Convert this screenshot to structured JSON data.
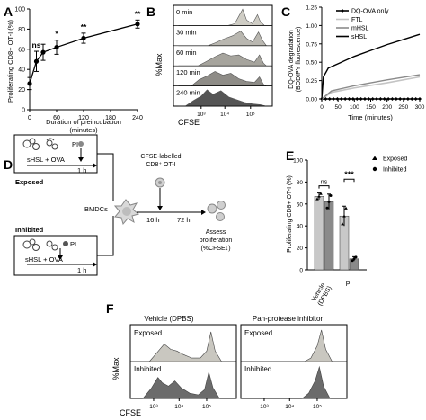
{
  "panel_letters": {
    "A": "A",
    "B": "B",
    "C": "C",
    "D": "D",
    "E": "E",
    "F": "F"
  },
  "colors": {
    "exposed": "#c9c7c0",
    "inhibited": "#6b6b6b",
    "vehicle_bar": "#c8c8c8",
    "pi_bar": "#7a7a7a",
    "line": "#000000"
  },
  "chart_data": [
    {
      "panel": "A",
      "type": "line",
      "title": "",
      "xlabel": "Duration of preincubation\n(minutes)",
      "ylabel": "Proliferating CD8+ OT-I (%)",
      "xlim": [
        0,
        240
      ],
      "ylim": [
        0,
        100
      ],
      "xticks": [
        "0",
        "60",
        "120",
        "180",
        "240"
      ],
      "yticks": [
        "0",
        "20",
        "40",
        "60",
        "80",
        "100"
      ],
      "x": [
        0,
        15,
        30,
        60,
        120,
        240
      ],
      "y": [
        26,
        48,
        57,
        62,
        71,
        85
      ],
      "err": [
        6,
        10,
        8,
        7,
        5,
        4
      ],
      "significance": [
        "",
        "ns",
        "*",
        "**",
        "**"
      ],
      "sig_x": [
        15,
        60,
        120,
        240
      ]
    },
    {
      "panel": "B",
      "type": "area",
      "xlabel": "CFSE",
      "ylabel": "%Max",
      "rows": [
        "0 min",
        "30 min",
        "60 min",
        "120 min",
        "240 min"
      ],
      "xticks": [
        "10³",
        "10⁴",
        "10⁵"
      ],
      "fill_colors": [
        "#cfcdc5",
        "#b9b7b0",
        "#a6a49d",
        "#8e8c87",
        "#555555"
      ]
    },
    {
      "panel": "C",
      "type": "line",
      "xlabel": "Time (minutes)",
      "ylabel": "DQ-OVA degradation\n(BODIPY fluorescence)",
      "xlim": [
        0,
        300
      ],
      "ylim": [
        0,
        1.25
      ],
      "xticks": [
        "0",
        "50",
        "100",
        "150",
        "200",
        "250",
        "300"
      ],
      "yticks": [
        "0.00",
        "0.25",
        "0.50",
        "0.75",
        "1.00",
        "1.25"
      ],
      "grid": false,
      "legend": "top-right",
      "series": [
        {
          "name": "DQ-OVA only",
          "x": [
            0,
            300
          ],
          "y": [
            0.0,
            0.0
          ]
        },
        {
          "name": "FTL",
          "x": [
            0,
            30,
            100,
            200,
            300
          ],
          "y": [
            0.0,
            0.09,
            0.15,
            0.22,
            0.3
          ]
        },
        {
          "name": "mHSL",
          "x": [
            0,
            30,
            100,
            200,
            300
          ],
          "y": [
            0.0,
            0.11,
            0.18,
            0.26,
            0.33
          ]
        },
        {
          "name": "sHSL",
          "x": [
            0,
            5,
            20,
            50,
            100,
            150,
            200,
            250,
            300
          ],
          "y": [
            0.0,
            0.3,
            0.42,
            0.48,
            0.58,
            0.66,
            0.74,
            0.81,
            0.88
          ]
        }
      ]
    },
    {
      "panel": "E",
      "type": "bar",
      "ylabel": "Proliferating CD8+ OT-I (%)",
      "categories": [
        "Vehicle\n(DPBS)",
        "PI"
      ],
      "ylim": [
        0,
        100
      ],
      "yticks": [
        "0",
        "20",
        "40",
        "60",
        "80",
        "100"
      ],
      "legend": "top-right",
      "series": [
        {
          "name": "Exposed",
          "values": [
            67,
            49
          ],
          "err": [
            3,
            9
          ]
        },
        {
          "name": "Inhibited",
          "values": [
            62,
            10
          ],
          "err": [
            7,
            2
          ]
        }
      ],
      "significance": [
        "ns",
        "***"
      ]
    },
    {
      "panel": "F",
      "type": "area",
      "xlabel": "CFSE",
      "ylabel": "%Max",
      "columns": [
        "Vehicle (DPBS)",
        "Pan-protease inhibitor"
      ],
      "rows": [
        "Exposed",
        "Inhibited"
      ],
      "xticks": [
        "10³",
        "10⁴",
        "10⁵"
      ]
    }
  ],
  "diagram_d": {
    "exposed_label": "Exposed",
    "inhibited_label": "Inhibited",
    "mix_label": "sHSL + OVA",
    "pi_label": "PI",
    "time_1h": "1 h",
    "bmdc_label": "BMDCs",
    "time_16h": "16 h",
    "time_72h": "72 h",
    "cfse_label_1": "CFSE-labelled",
    "cfse_label_2": "CD8⁺ OT-I",
    "assess_1": "Assess",
    "assess_2": "proliferation",
    "assess_3": "(%CFSE↓)"
  }
}
